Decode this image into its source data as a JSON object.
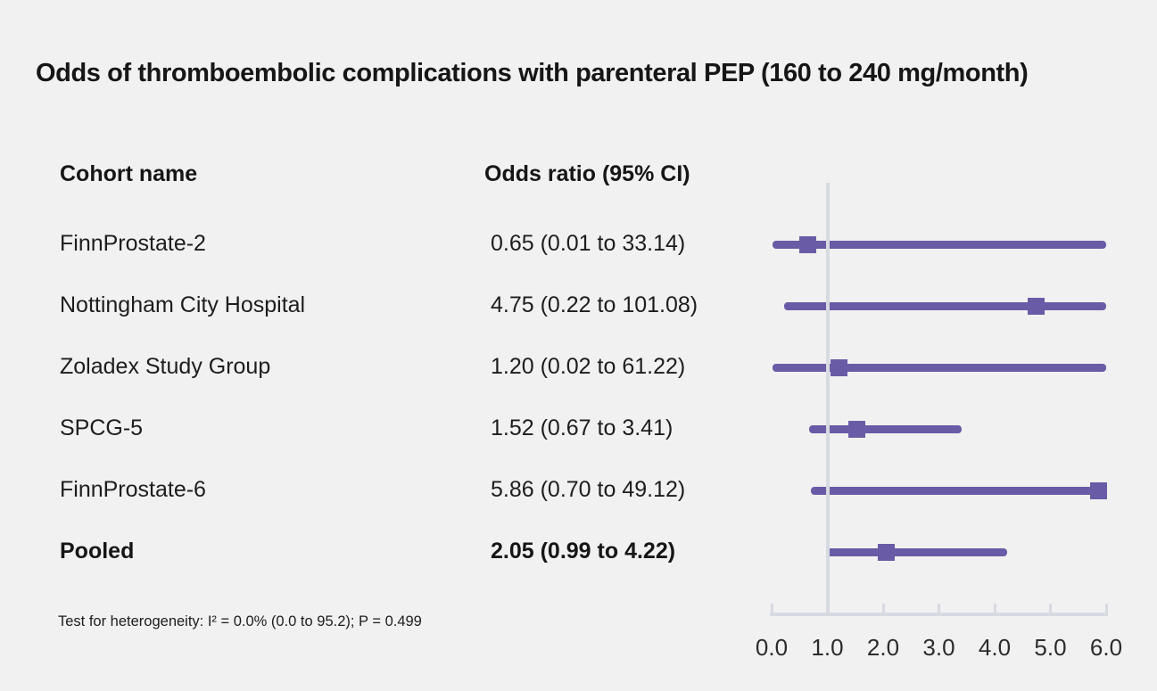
{
  "title": "Odds of thromboembolic complications with parenteral PEP (160 to 240 mg/month)",
  "columns": {
    "cohort": "Cohort name",
    "odds": "Odds ratio (95% CI)"
  },
  "footnote": "Test for heterogeneity: I² = 0.0% (0.0 to 95.2); P = 0.499",
  "colors": {
    "accent": "#6a5ba6",
    "axis": "#d7dae1",
    "text": "#1d1d1d",
    "background": "#f2f1f1"
  },
  "chart_data": {
    "type": "forest",
    "title": "Odds of thromboembolic complications with parenteral PEP (160 to 240 mg/month)",
    "xlabel": "",
    "xlim": [
      0,
      6
    ],
    "xticks": [
      0.0,
      1.0,
      2.0,
      3.0,
      4.0,
      5.0,
      6.0
    ],
    "xtick_labels": [
      "0.0",
      "1.0",
      "2.0",
      "3.0",
      "4.0",
      "5.0",
      "6.0"
    ],
    "reference_line": 1.0,
    "legend_position": "none",
    "grid": false,
    "rows": [
      {
        "name": "FinnProstate-2",
        "label": "0.65 (0.01 to 33.14)",
        "or": 0.65,
        "ci_low": 0.01,
        "ci_high": 33.14,
        "bold": false
      },
      {
        "name": "Nottingham City Hospital",
        "label": "4.75 (0.22 to 101.08)",
        "or": 4.75,
        "ci_low": 0.22,
        "ci_high": 101.08,
        "bold": false
      },
      {
        "name": "Zoladex Study Group",
        "label": "1.20 (0.02 to 61.22)",
        "or": 1.2,
        "ci_low": 0.02,
        "ci_high": 61.22,
        "bold": false
      },
      {
        "name": "SPCG-5",
        "label": "1.52 (0.67 to 3.41)",
        "or": 1.52,
        "ci_low": 0.67,
        "ci_high": 3.41,
        "bold": false
      },
      {
        "name": "FinnProstate-6",
        "label": "5.86 (0.70 to 49.12)",
        "or": 5.86,
        "ci_low": 0.7,
        "ci_high": 49.12,
        "bold": false
      },
      {
        "name": "Pooled",
        "label": "2.05 (0.99 to 4.22)",
        "or": 2.05,
        "ci_low": 0.99,
        "ci_high": 4.22,
        "bold": true
      }
    ]
  }
}
